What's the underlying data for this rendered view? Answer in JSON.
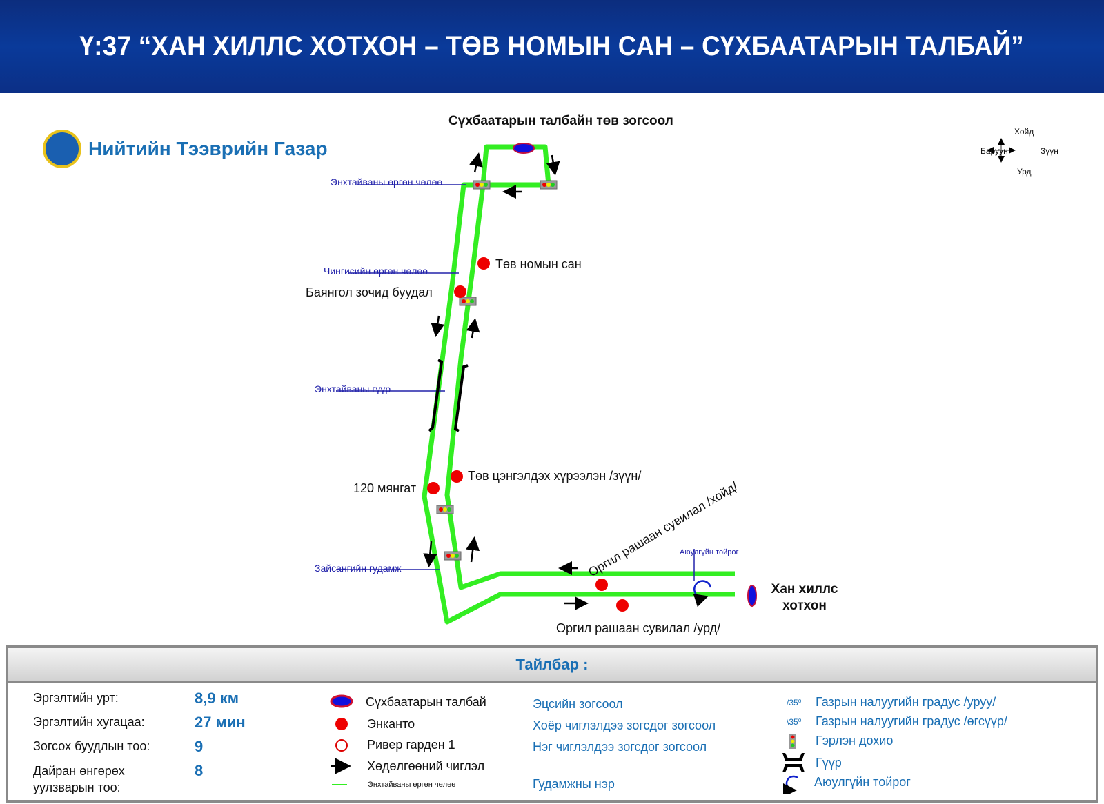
{
  "header": {
    "title": "Ү:37 “ХАН ХИЛЛС ХОТХОН – ТӨВ НОМЫН САН – СҮХБААТАРЫН ТАЛБАЙ”"
  },
  "organization": {
    "name": "Нийтийн Тээврийн Газар"
  },
  "compass": {
    "north": "Хойд",
    "south": "Урд",
    "west": "Баруун",
    "east": "Зүүн"
  },
  "colors": {
    "route": "#33ee22",
    "stop": "#ee0000",
    "terminal_fill": "#1010dd",
    "header": "#0b3590",
    "accent_text": "#1a6fb4",
    "street_label": "#2222aa"
  },
  "map": {
    "terminals": {
      "north": "Сүхбаатарын талбайн төв зогсоол",
      "south": "Хан хиллс хотхон"
    },
    "stops": [
      "Төв номын сан",
      "Баянгол зочид буудал",
      "120 мянгат",
      "Төв цэнгэлдэх хүрээлэн /зүүн/",
      "Оргил рашаан сувилал /хойд/",
      "Оргил рашаан сувилал /урд/"
    ],
    "streets": [
      "Энхтайваны өргөн чөлөө",
      "Чингисийн өргөн чөлөө",
      "Энхтайваны гүүр",
      "Зайсангийн гудамж"
    ],
    "roundabout_label": "Аюулгүйн тойрог"
  },
  "legend": {
    "title": "Тайлбар :",
    "stats": [
      {
        "label": "Эргэлтийн урт:",
        "value": "8,9 км"
      },
      {
        "label": "Эргэлтийн хугацаа:",
        "value": "27 мин"
      },
      {
        "label": "Зогсох буудлын тоо:",
        "value": "9"
      },
      {
        "label": "Дайран өнгөрөх уулзварын тоо:",
        "value": "8"
      }
    ],
    "symbols": [
      {
        "icon": "terminal-oval-icon",
        "label": "Сүхбаатарын талбай",
        "meaning": "Эцсийн зогсоол"
      },
      {
        "icon": "filled-stop-icon",
        "label": "Энканто",
        "meaning": "Хоёр чиглэлдээ зогсдог зогсоол"
      },
      {
        "icon": "hollow-stop-icon",
        "label": "Ривер гарден 1",
        "meaning": "Нэг чиглэлдээ зогсдог зогсоол"
      },
      {
        "icon": "arrow-icon",
        "label": "Хөдөлгөөний чиглэл",
        "meaning": ""
      },
      {
        "icon": "street-line-icon",
        "label": "Энхтайваны өргөн чөлөө",
        "meaning": "Гудамжны нэр"
      }
    ],
    "extra": [
      {
        "icon": "slope-down-icon",
        "mark": "/35⁰",
        "label": "Газрын налуугийн градус /уруу/"
      },
      {
        "icon": "slope-up-icon",
        "mark": "\\35⁰",
        "label": "Газрын налуугийн градус /өгсүүр/"
      },
      {
        "icon": "traffic-light-icon",
        "label": "Гэрлэн дохио"
      },
      {
        "icon": "bridge-icon",
        "label": "Гүүр"
      },
      {
        "icon": "roundabout-icon",
        "label": "Аюулгүйн тойрог"
      }
    ]
  }
}
